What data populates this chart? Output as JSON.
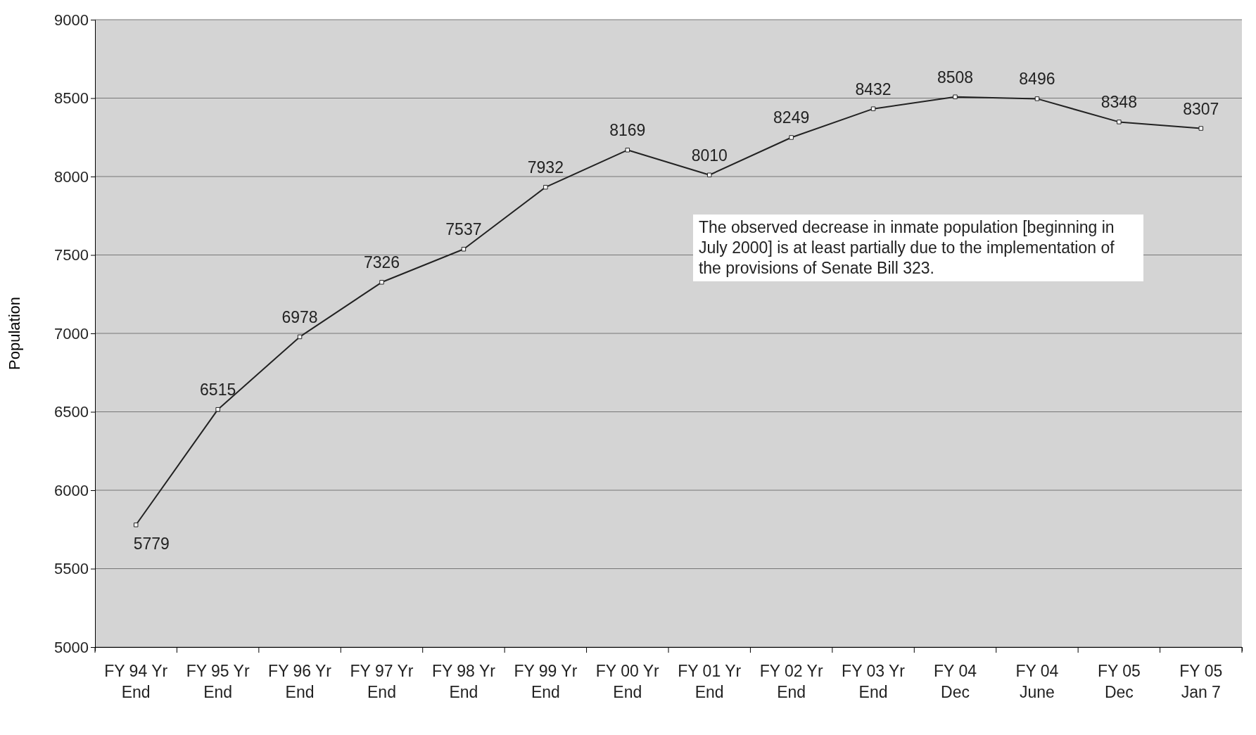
{
  "chart_data": {
    "type": "line",
    "ylabel": "Population",
    "categories": [
      "FY 94 Yr\nEnd",
      "FY 95 Yr\nEnd",
      "FY 96 Yr\nEnd",
      "FY 97 Yr\nEnd",
      "FY 98 Yr\nEnd",
      "FY 99 Yr\nEnd",
      "FY 00 Yr\nEnd",
      "FY 01 Yr\nEnd",
      "FY 02 Yr\nEnd",
      "FY 03 Yr\nEnd",
      "FY 04\nDec",
      "FY 04\nJune",
      "FY 05\nDec",
      "FY 05\nJan 7"
    ],
    "values": [
      5779,
      6515,
      6978,
      7326,
      7537,
      7932,
      8169,
      8010,
      8249,
      8432,
      8508,
      8496,
      8348,
      8307
    ],
    "color": "#222222",
    "marker": "square",
    "line_style": "solid",
    "data_labels": true,
    "grid": "y",
    "ylim": [
      5000,
      9000
    ],
    "yticks": [
      5000,
      5500,
      6000,
      6500,
      7000,
      7500,
      8000,
      8500,
      9000
    ],
    "annotations": [
      "The observed decrease in inmate population [beginning in July 2000] is at least partially due to the implementation of the provisions of Senate Bill 323."
    ]
  }
}
